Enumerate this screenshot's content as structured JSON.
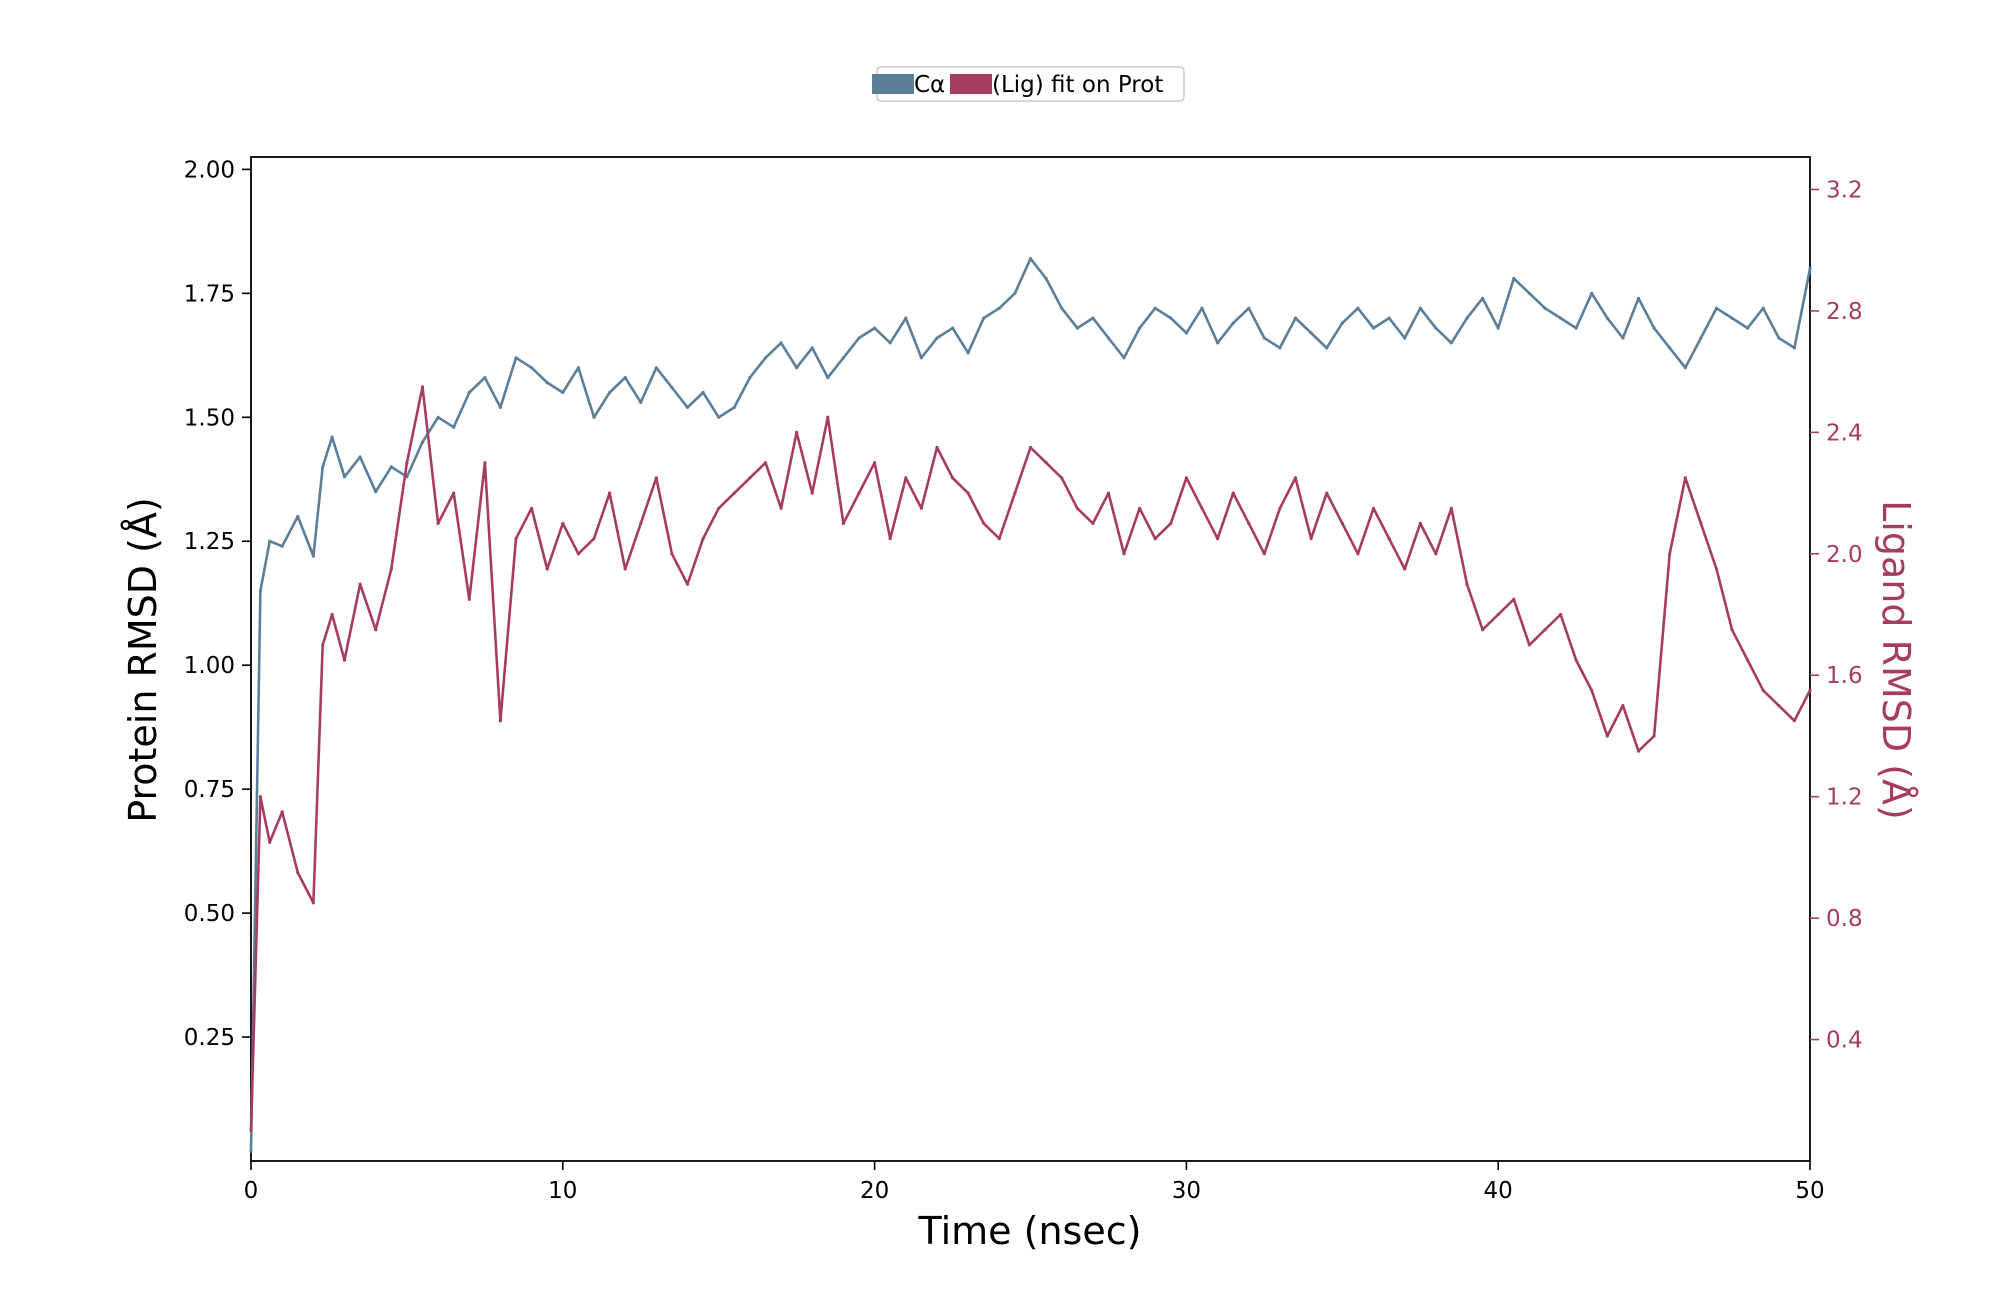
{
  "chart_data": {
    "type": "line",
    "xlabel": "Time (nsec)",
    "ylabel_left": "Protein RMSD (Å)",
    "ylabel_right": "Ligand RMSD (Å)",
    "xlim": [
      0,
      50
    ],
    "ylim_left": [
      0,
      2.025
    ],
    "ylim_right": [
      0,
      3.307
    ],
    "xticks": [
      0,
      10,
      20,
      30,
      40,
      50
    ],
    "yticks_left": [
      0.25,
      0.5,
      0.75,
      1.0,
      1.25,
      1.5,
      1.75,
      2.0
    ],
    "yticks_right": [
      0.4,
      0.8,
      1.2,
      1.6,
      2.0,
      2.4,
      2.8,
      3.2
    ],
    "legend_position": "top-center",
    "grid": false,
    "series": [
      {
        "name": "Cα",
        "axis": "left",
        "color": "#5b7f99",
        "x": [
          0,
          0.3,
          0.6,
          1.0,
          1.5,
          2.0,
          2.3,
          2.6,
          3.0,
          3.5,
          4.0,
          4.5,
          5.0,
          5.5,
          6.0,
          6.5,
          7.0,
          7.5,
          8.0,
          8.5,
          9.0,
          9.5,
          10.0,
          10.5,
          11.0,
          11.5,
          12.0,
          12.5,
          13.0,
          13.5,
          14.0,
          14.5,
          15.0,
          15.5,
          16.0,
          16.5,
          17.0,
          17.5,
          18.0,
          18.5,
          19.0,
          19.5,
          20.0,
          20.5,
          21.0,
          21.5,
          22.0,
          22.5,
          23.0,
          23.5,
          24.0,
          24.5,
          25.0,
          25.5,
          26.0,
          26.5,
          27.0,
          27.5,
          28.0,
          28.5,
          29.0,
          29.5,
          30.0,
          30.5,
          31.0,
          31.5,
          32.0,
          32.5,
          33.0,
          33.5,
          34.0,
          34.5,
          35.0,
          35.5,
          36.0,
          36.5,
          37.0,
          37.5,
          38.0,
          38.5,
          39.0,
          39.5,
          40.0,
          40.5,
          41.0,
          41.5,
          42.0,
          42.5,
          43.0,
          43.5,
          44.0,
          44.5,
          45.0,
          45.5,
          46.0,
          46.5,
          47.0,
          47.5,
          48.0,
          48.5,
          49.0,
          49.5,
          50.0
        ],
        "values": [
          0.02,
          1.15,
          1.25,
          1.24,
          1.3,
          1.22,
          1.4,
          1.46,
          1.38,
          1.42,
          1.35,
          1.4,
          1.38,
          1.45,
          1.5,
          1.48,
          1.55,
          1.58,
          1.52,
          1.62,
          1.6,
          1.57,
          1.55,
          1.6,
          1.5,
          1.55,
          1.58,
          1.53,
          1.6,
          1.56,
          1.52,
          1.55,
          1.5,
          1.52,
          1.58,
          1.62,
          1.65,
          1.6,
          1.64,
          1.58,
          1.62,
          1.66,
          1.68,
          1.65,
          1.7,
          1.62,
          1.66,
          1.68,
          1.63,
          1.7,
          1.72,
          1.75,
          1.82,
          1.78,
          1.72,
          1.68,
          1.7,
          1.66,
          1.62,
          1.68,
          1.72,
          1.7,
          1.67,
          1.72,
          1.65,
          1.69,
          1.72,
          1.66,
          1.64,
          1.7,
          1.67,
          1.64,
          1.69,
          1.72,
          1.68,
          1.7,
          1.66,
          1.72,
          1.68,
          1.65,
          1.7,
          1.74,
          1.68,
          1.78,
          1.75,
          1.72,
          1.7,
          1.68,
          1.75,
          1.7,
          1.66,
          1.74,
          1.68,
          1.64,
          1.6,
          1.66,
          1.72,
          1.7,
          1.68,
          1.72,
          1.66,
          1.64,
          1.8
        ]
      },
      {
        "name": "(Lig) fit on Prot",
        "axis": "right",
        "color": "#a63d60",
        "x": [
          0,
          0.3,
          0.6,
          1.0,
          1.5,
          2.0,
          2.3,
          2.6,
          3.0,
          3.5,
          4.0,
          4.5,
          5.0,
          5.5,
          6.0,
          6.5,
          7.0,
          7.5,
          8.0,
          8.5,
          9.0,
          9.5,
          10.0,
          10.5,
          11.0,
          11.5,
          12.0,
          12.5,
          13.0,
          13.5,
          14.0,
          14.5,
          15.0,
          15.5,
          16.0,
          16.5,
          17.0,
          17.5,
          18.0,
          18.5,
          19.0,
          19.5,
          20.0,
          20.5,
          21.0,
          21.5,
          22.0,
          22.5,
          23.0,
          23.5,
          24.0,
          24.5,
          25.0,
          25.5,
          26.0,
          26.5,
          27.0,
          27.5,
          28.0,
          28.5,
          29.0,
          29.5,
          30.0,
          30.5,
          31.0,
          31.5,
          32.0,
          32.5,
          33.0,
          33.5,
          34.0,
          34.5,
          35.0,
          35.5,
          36.0,
          36.5,
          37.0,
          37.5,
          38.0,
          38.5,
          39.0,
          39.5,
          40.0,
          40.5,
          41.0,
          41.5,
          42.0,
          42.5,
          43.0,
          43.5,
          44.0,
          44.5,
          45.0,
          45.5,
          46.0,
          46.5,
          47.0,
          47.5,
          48.0,
          48.5,
          49.0,
          49.5,
          50.0
        ],
        "values": [
          0.1,
          1.2,
          1.05,
          1.15,
          0.95,
          0.85,
          1.7,
          1.8,
          1.65,
          1.9,
          1.75,
          1.95,
          2.3,
          2.55,
          2.1,
          2.2,
          1.85,
          2.3,
          1.45,
          2.05,
          2.15,
          1.95,
          2.1,
          2.0,
          2.05,
          2.2,
          1.95,
          2.1,
          2.25,
          2.0,
          1.9,
          2.05,
          2.15,
          2.2,
          2.25,
          2.3,
          2.15,
          2.4,
          2.2,
          2.45,
          2.1,
          2.2,
          2.3,
          2.05,
          2.25,
          2.15,
          2.35,
          2.25,
          2.2,
          2.1,
          2.05,
          2.2,
          2.35,
          2.3,
          2.25,
          2.15,
          2.1,
          2.2,
          2.0,
          2.15,
          2.05,
          2.1,
          2.25,
          2.15,
          2.05,
          2.2,
          2.1,
          2.0,
          2.15,
          2.25,
          2.05,
          2.2,
          2.1,
          2.0,
          2.15,
          2.05,
          1.95,
          2.1,
          2.0,
          2.15,
          1.9,
          1.75,
          1.8,
          1.85,
          1.7,
          1.75,
          1.8,
          1.65,
          1.55,
          1.4,
          1.5,
          1.35,
          1.4,
          2.0,
          2.25,
          2.1,
          1.95,
          1.75,
          1.65,
          1.55,
          1.5,
          1.45,
          1.55
        ]
      }
    ]
  },
  "legend": {
    "series_1_label": "Cα",
    "series_2_label": "(Lig) fit on Prot"
  }
}
